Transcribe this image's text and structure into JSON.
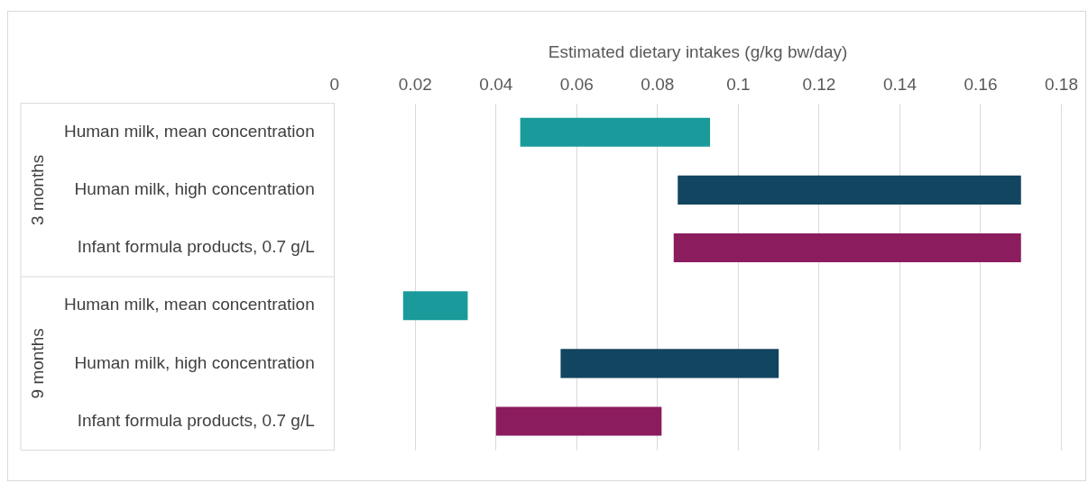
{
  "chart_data": {
    "type": "bar",
    "orientation": "horizontal",
    "xlabel": "Estimated dietary intakes (g/kg bw/day)",
    "categories": [
      "Human milk, mean concentration",
      "Human milk, high concentration",
      "Infant formula products, 0.7 g/L",
      "Human milk, mean concentration",
      "Human milk, high concentration",
      "Infant formula products, 0.7 g/L"
    ],
    "base": [
      0.046,
      0.085,
      0.084,
      0.017,
      0.056,
      0.04
    ],
    "values": [
      0.047,
      0.085,
      0.086,
      0.016,
      0.054,
      0.041
    ],
    "colors": [
      "#1a9a9a",
      "#124560",
      "#8b1c5e",
      "#1a9a9a",
      "#124560",
      "#8b1c5e"
    ],
    "xlim": [
      0,
      0.18
    ],
    "xticks": [
      0,
      0.02,
      0.04,
      0.06,
      0.08,
      0.1,
      0.12,
      0.14,
      0.16,
      0.18
    ],
    "grid": "x",
    "legend": false,
    "annotations": [
      "3 months",
      "9 months"
    ]
  }
}
